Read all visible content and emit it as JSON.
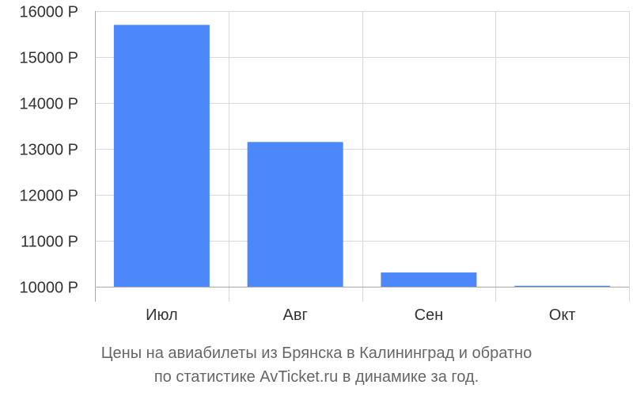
{
  "chart_data": {
    "type": "bar",
    "categories": [
      "Июл",
      "Авг",
      "Сен",
      "Окт"
    ],
    "values": [
      15700,
      13150,
      10310,
      10020
    ],
    "ylim": [
      10000,
      16000
    ],
    "yticks": [
      10000,
      11000,
      12000,
      13000,
      14000,
      15000,
      16000
    ],
    "ytick_labels": [
      "10000 Р",
      "11000 Р",
      "12000 Р",
      "13000 Р",
      "14000 Р",
      "15000 Р",
      "16000 Р"
    ],
    "grid": true,
    "bar_color": "#4d88fb",
    "grid_color": "#d9d9d9",
    "axis_color": "#aaaaaa"
  },
  "caption": {
    "line1": "Цены на авиабилеты из Брянска в Калининград и обратно",
    "line2": "по статистике AvTicket.ru в динамике за год."
  }
}
